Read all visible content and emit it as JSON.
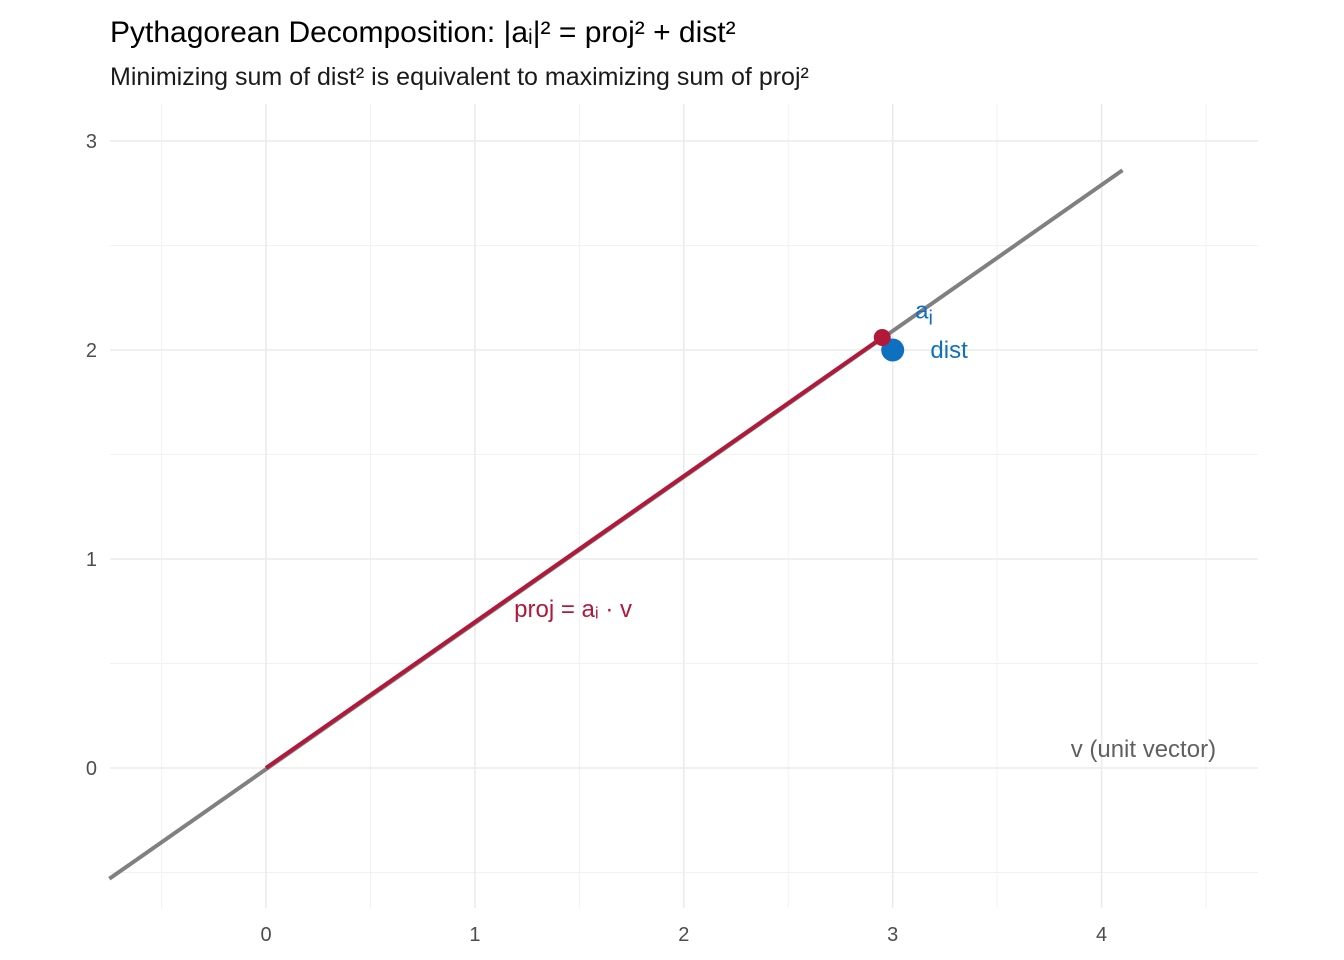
{
  "chart_data": {
    "type": "scatter",
    "title": "Pythagorean Decomposition: |aᵢ|² = proj² + dist²",
    "subtitle": "Minimizing sum of dist² is equivalent to maximizing sum of proj²",
    "xlabel": "",
    "ylabel": "",
    "xlim": [
      -0.75,
      4.75
    ],
    "ylim": [
      -0.65,
      3.18
    ],
    "x_ticks": [
      0,
      1,
      2,
      3,
      4
    ],
    "x_tick_labels": [
      "0",
      "1",
      "2",
      "3",
      "4"
    ],
    "y_ticks": [
      0,
      1,
      2,
      3
    ],
    "y_tick_labels": [
      "0",
      "1",
      "2",
      "3"
    ],
    "x_minor_breaks": [
      -0.5,
      0.5,
      1.5,
      2.5,
      3.5,
      4.5
    ],
    "y_minor_breaks": [
      -0.5,
      0.5,
      1.5,
      2.5
    ],
    "grid": true,
    "unit_vector_line": {
      "from": [
        -0.75,
        -0.53
      ],
      "to": [
        4.1,
        2.86
      ],
      "color": "#808080"
    },
    "projection_segment": {
      "from": [
        0,
        0
      ],
      "to": [
        2.95,
        2.06
      ],
      "color": "#B2183A"
    },
    "projection_point": {
      "x": 2.95,
      "y": 2.06,
      "color": "#B2183A"
    },
    "data_point": {
      "x": 3.0,
      "y": 2.0,
      "color": "#1070C0"
    },
    "annotations": [
      {
        "id": "ai",
        "text": "a",
        "sub": "i",
        "x": 3.15,
        "y": 2.19,
        "color": "#1070C0"
      },
      {
        "id": "dist",
        "text": "dist",
        "x": 3.27,
        "y": 2.0,
        "color": "#1070C0"
      },
      {
        "id": "proj",
        "text": "proj = aᵢ · v",
        "x": 1.47,
        "y": 0.76,
        "color": "#B2183A"
      },
      {
        "id": "v",
        "text": "v (unit vector)",
        "x": 4.2,
        "y": 0.09,
        "color": "#606060"
      }
    ]
  }
}
